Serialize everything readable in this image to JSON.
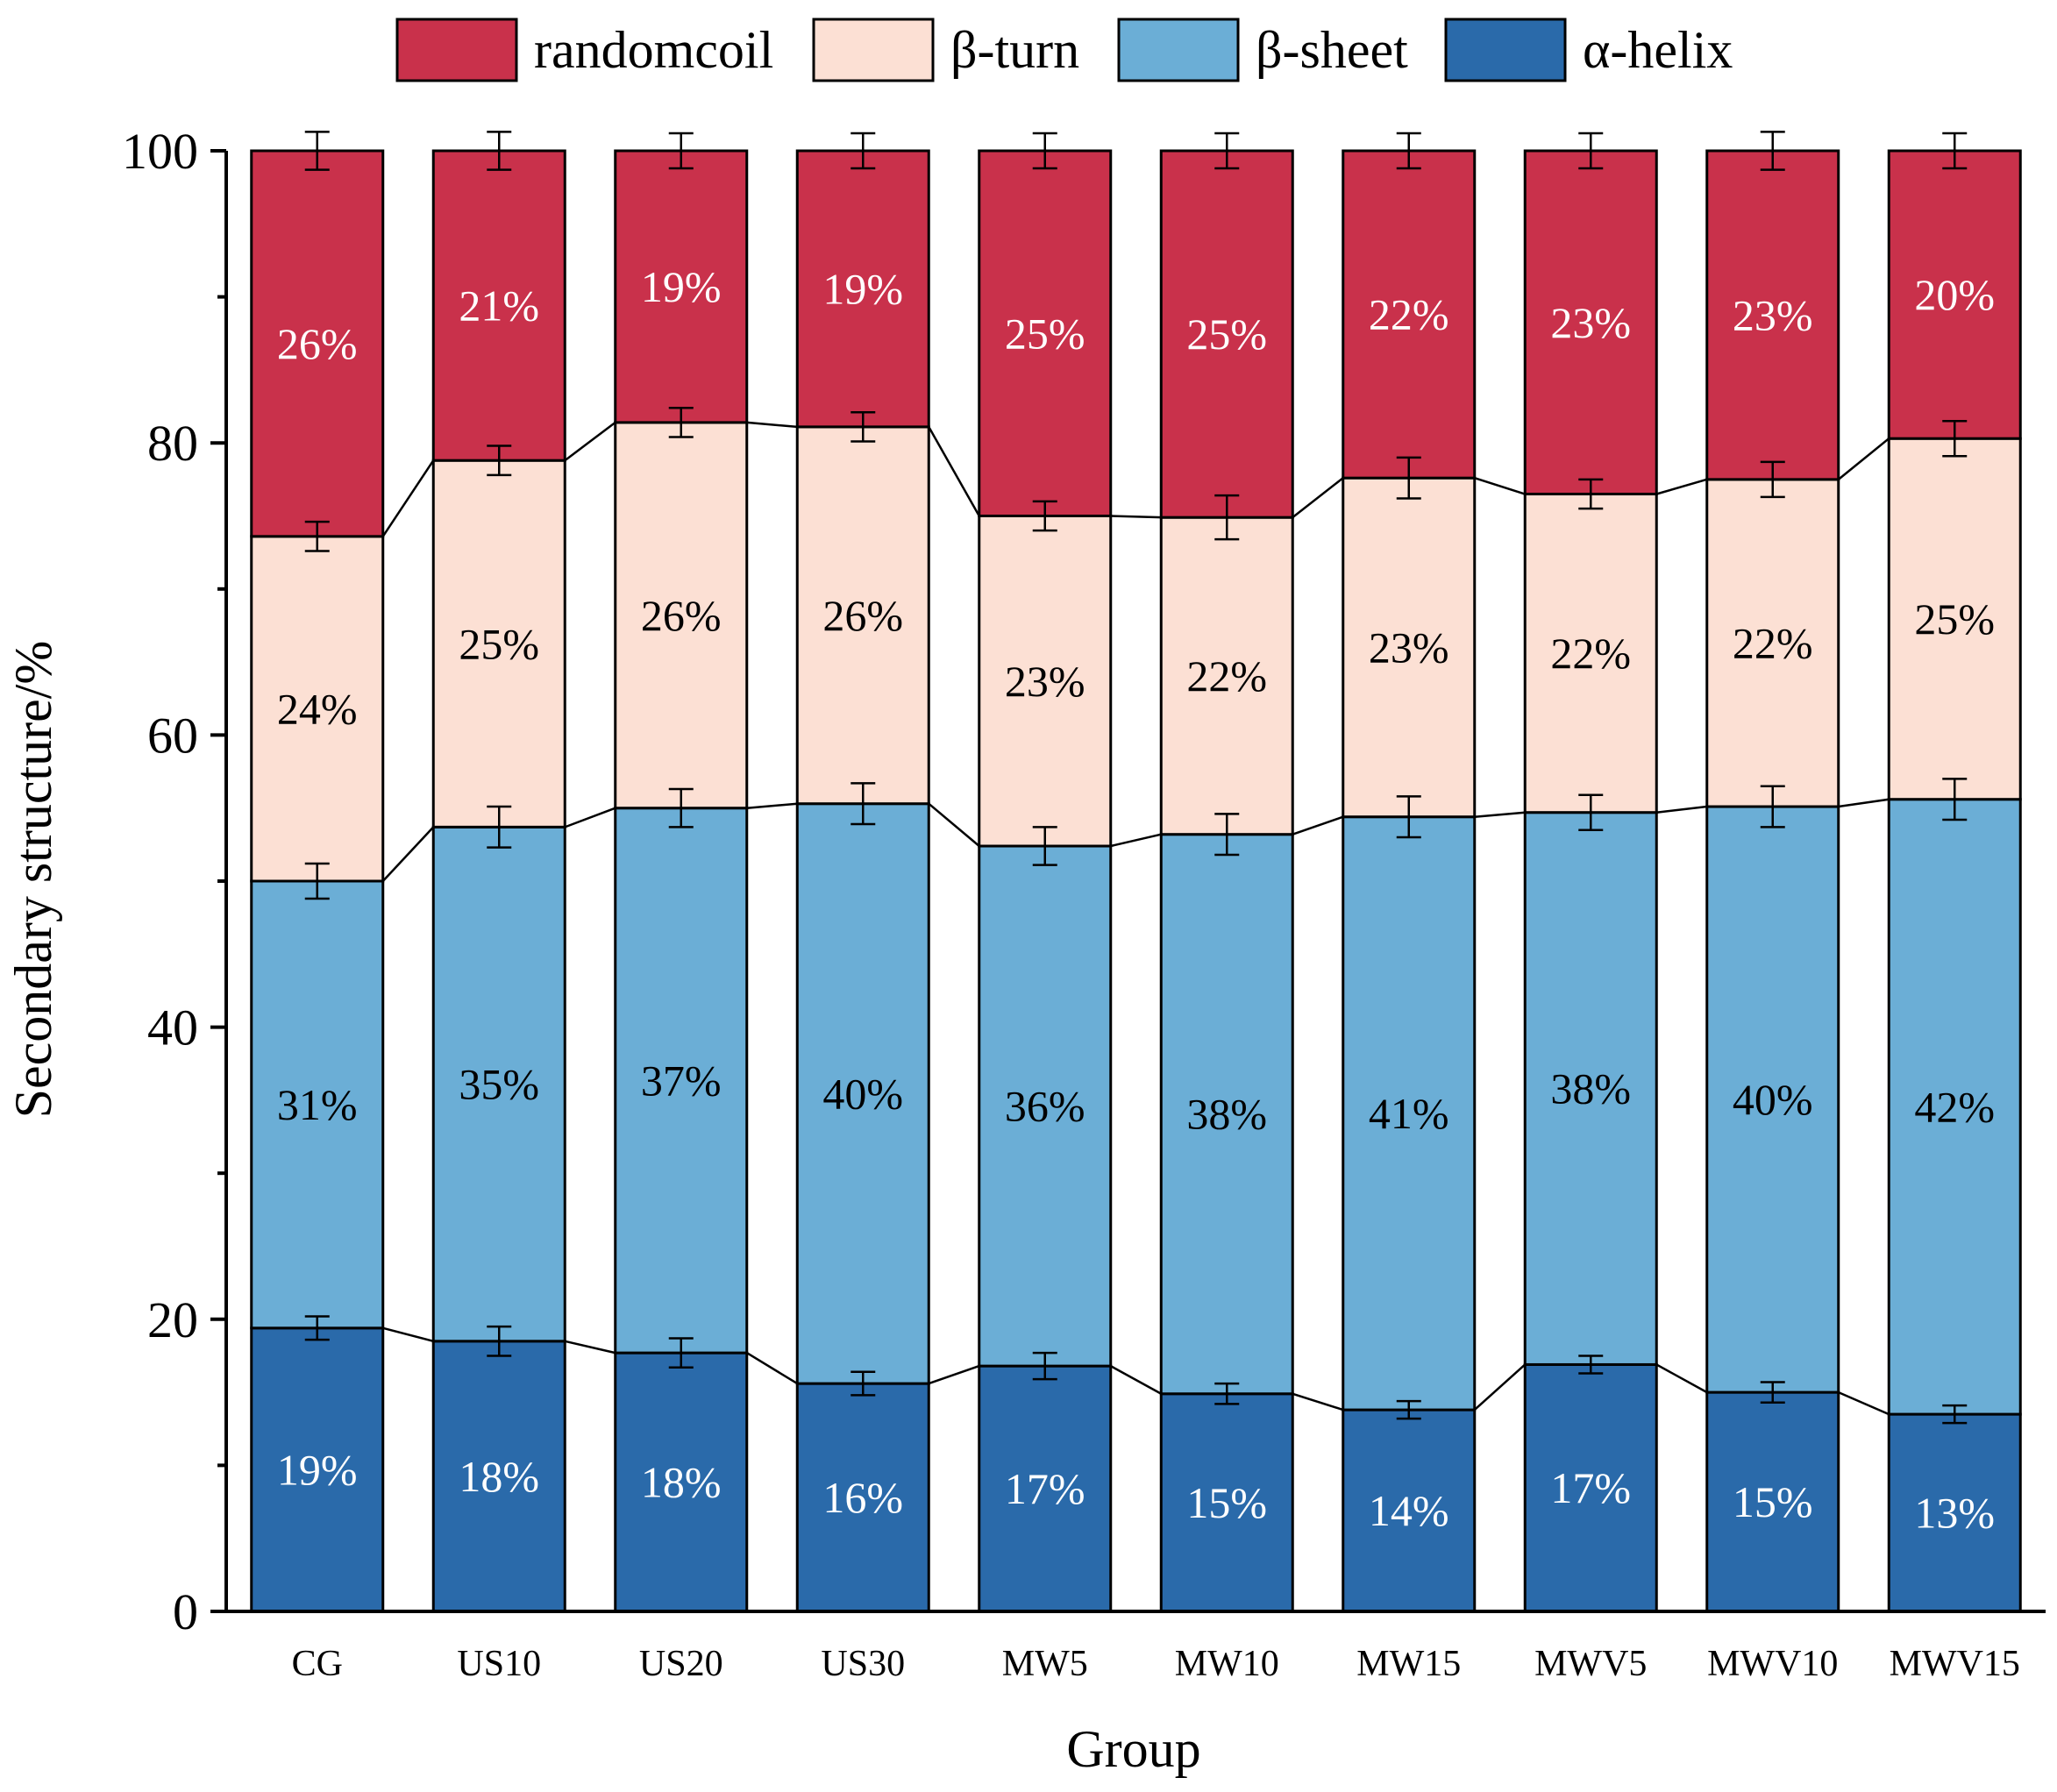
{
  "chart_data": {
    "type": "bar",
    "stacked": true,
    "title": "",
    "xlabel": "Group",
    "ylabel": "Secondary structure/%",
    "ylim": [
      0,
      100
    ],
    "yticks": [
      0,
      20,
      40,
      60,
      80,
      100
    ],
    "grid": false,
    "legend_position": "top",
    "categories": [
      "CG",
      "US10",
      "US20",
      "US30",
      "MW5",
      "MW10",
      "MW15",
      "MWV5",
      "MWV10",
      "MWV15"
    ],
    "series": [
      {
        "name": "α-helix",
        "color": "#2A6AAA",
        "label_color": "#ffffff",
        "values": [
          19.4,
          18.5,
          17.7,
          15.6,
          16.8,
          14.9,
          13.8,
          16.9,
          15.0,
          13.5
        ],
        "errors": [
          0.8,
          1.0,
          1.0,
          0.8,
          0.9,
          0.7,
          0.6,
          0.6,
          0.7,
          0.6
        ],
        "labels": [
          "19%",
          "18%",
          "18%",
          "16%",
          "17%",
          "15%",
          "14%",
          "17%",
          "15%",
          "13%"
        ]
      },
      {
        "name": "β-sheet",
        "color": "#6BAED6",
        "label_color": "#000000",
        "values": [
          30.6,
          35.2,
          37.3,
          39.7,
          35.6,
          38.3,
          40.6,
          37.8,
          40.1,
          42.1
        ],
        "errors": [
          1.2,
          1.4,
          1.3,
          1.4,
          1.3,
          1.4,
          1.4,
          1.2,
          1.4,
          1.4
        ],
        "labels": [
          "31%",
          "35%",
          "37%",
          "40%",
          "36%",
          "38%",
          "41%",
          "38%",
          "40%",
          "42%"
        ]
      },
      {
        "name": "β-turn",
        "color": "#FCE0D4",
        "label_color": "#000000",
        "values": [
          23.6,
          25.1,
          26.4,
          25.8,
          22.6,
          21.7,
          23.2,
          21.8,
          22.4,
          24.7
        ],
        "errors": [
          1.0,
          1.0,
          1.0,
          1.0,
          1.0,
          1.5,
          1.4,
          1.0,
          1.2,
          1.2
        ],
        "labels": [
          "24%",
          "25%",
          "26%",
          "26%",
          "23%",
          "22%",
          "23%",
          "22%",
          "22%",
          "25%"
        ]
      },
      {
        "name": "randomcoil",
        "color": "#C9314B",
        "label_color": "#ffffff",
        "values": [
          26.4,
          21.2,
          18.6,
          18.9,
          25.0,
          25.1,
          22.4,
          23.5,
          22.5,
          19.7
        ],
        "errors": [
          1.3,
          1.3,
          1.2,
          1.2,
          1.2,
          1.2,
          1.2,
          1.2,
          1.3,
          1.2
        ],
        "labels": [
          "26%",
          "21%",
          "19%",
          "19%",
          "25%",
          "25%",
          "22%",
          "23%",
          "23%",
          "20%"
        ]
      }
    ],
    "legend_order": [
      "randomcoil",
      "β-turn",
      "β-sheet",
      "α-helix"
    ]
  }
}
